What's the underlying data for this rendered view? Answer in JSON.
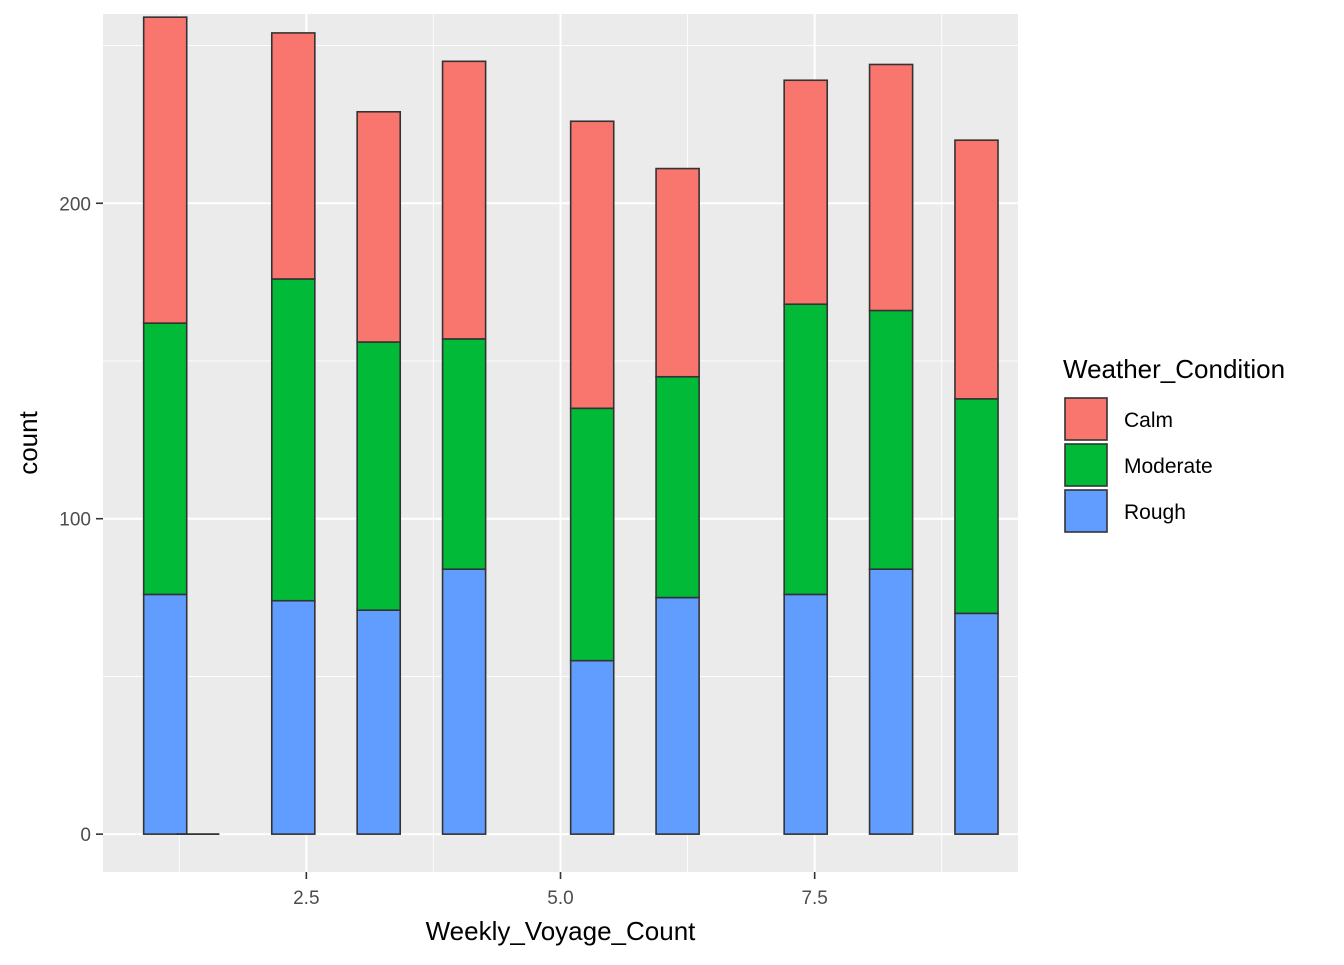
{
  "chart_data": {
    "type": "bar",
    "stacked": true,
    "title": "",
    "xlabel": "Weekly_Voyage_Count",
    "ylabel": "count",
    "xlim": [
      0.5,
      9.5
    ],
    "ylim": [
      -12,
      260
    ],
    "x_ticks": [
      2.5,
      5.0,
      7.5
    ],
    "x_tick_labels": [
      "2.5",
      "5.0",
      "7.5"
    ],
    "y_ticks": [
      0,
      100,
      200
    ],
    "y_tick_labels": [
      "0",
      "100",
      "200"
    ],
    "grid": true,
    "legend_position": "right",
    "legend_title": "Weather_Condition",
    "bin_width": 0.4235,
    "bins": [
      0.9,
      1.22,
      2.16,
      3.0,
      3.84,
      5.1,
      5.94,
      7.2,
      8.04,
      8.88
    ],
    "series": [
      {
        "name": "Rough",
        "color": "#619CFF",
        "values": [
          76,
          0,
          74,
          71,
          84,
          55,
          75,
          76,
          84,
          70
        ]
      },
      {
        "name": "Moderate",
        "color": "#00BA38",
        "values": [
          86,
          0,
          102,
          85,
          73,
          80,
          70,
          92,
          82,
          68
        ]
      },
      {
        "name": "Calm",
        "color": "#F8766D",
        "values": [
          97,
          0,
          78,
          73,
          88,
          91,
          66,
          71,
          78,
          82
        ]
      }
    ],
    "legend_order": [
      "Calm",
      "Moderate",
      "Rough"
    ],
    "colors": {
      "panel_background": "#EBEBEB",
      "grid_major": "#FFFFFF",
      "bar_outline": "#333333"
    }
  }
}
